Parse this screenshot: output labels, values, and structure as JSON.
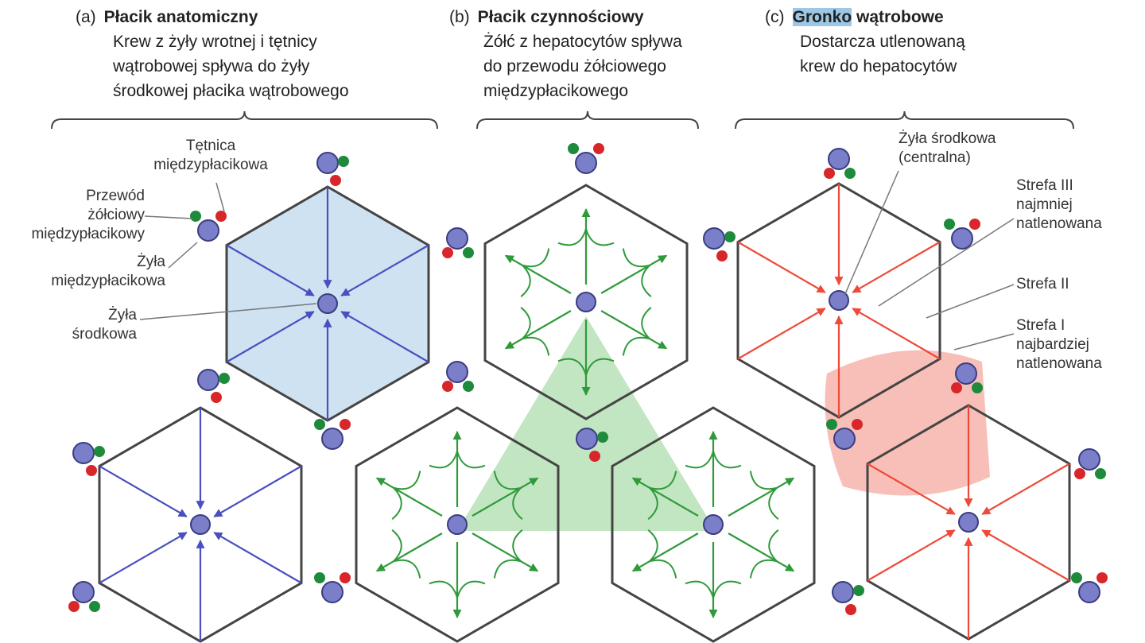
{
  "panels": [
    {
      "tag": "(a)",
      "title": "Płacik anatomiczny",
      "title_highlight": "",
      "lines": [
        "Krew z żyły wrotnej i tętnicy",
        "wątrobowej spływa do żyły",
        "środkowej płacika wątrobowego"
      ]
    },
    {
      "tag": "(b)",
      "title": "Płacik czynnościowy",
      "title_highlight": "",
      "lines": [
        "Żółć z hepatocytów spływa",
        "do przewodu żółciowego",
        "międzypłacikowego"
      ]
    },
    {
      "tag": "(c)",
      "title": " wątrobowe",
      "title_highlight": "Gronko",
      "lines": [
        "Dostarcza utlenowaną",
        "krew do hepatocytów"
      ]
    }
  ],
  "labels": {
    "tetnica": [
      "Tętnica",
      "międzypłacikowa"
    ],
    "przewod": [
      "Przewód",
      "żółciowy",
      "międzypłacikowy"
    ],
    "zyla_miedzy": [
      "Żyła",
      "międzypłacikowa"
    ],
    "zyla_srodkowa": [
      "Żyła",
      "środkowa"
    ],
    "zyla_centralna": [
      "Żyła środkowa",
      "(centralna)"
    ],
    "strefa3": [
      "Strefa III",
      "najmniej",
      "natlenowana"
    ],
    "strefa2": [
      "Strefa II"
    ],
    "strefa1": [
      "Strefa I",
      "najbardziej",
      "natlenowana"
    ]
  },
  "colors": {
    "vein": "#7b7fc9",
    "artery": "#d8262a",
    "bile_duct": "#1e8a3c",
    "anatomic": "#4a4fc0",
    "bile_flow": "#2f9a3a",
    "acinus": "#ee4a3a",
    "lobule_fill": "#cfe2f2"
  }
}
